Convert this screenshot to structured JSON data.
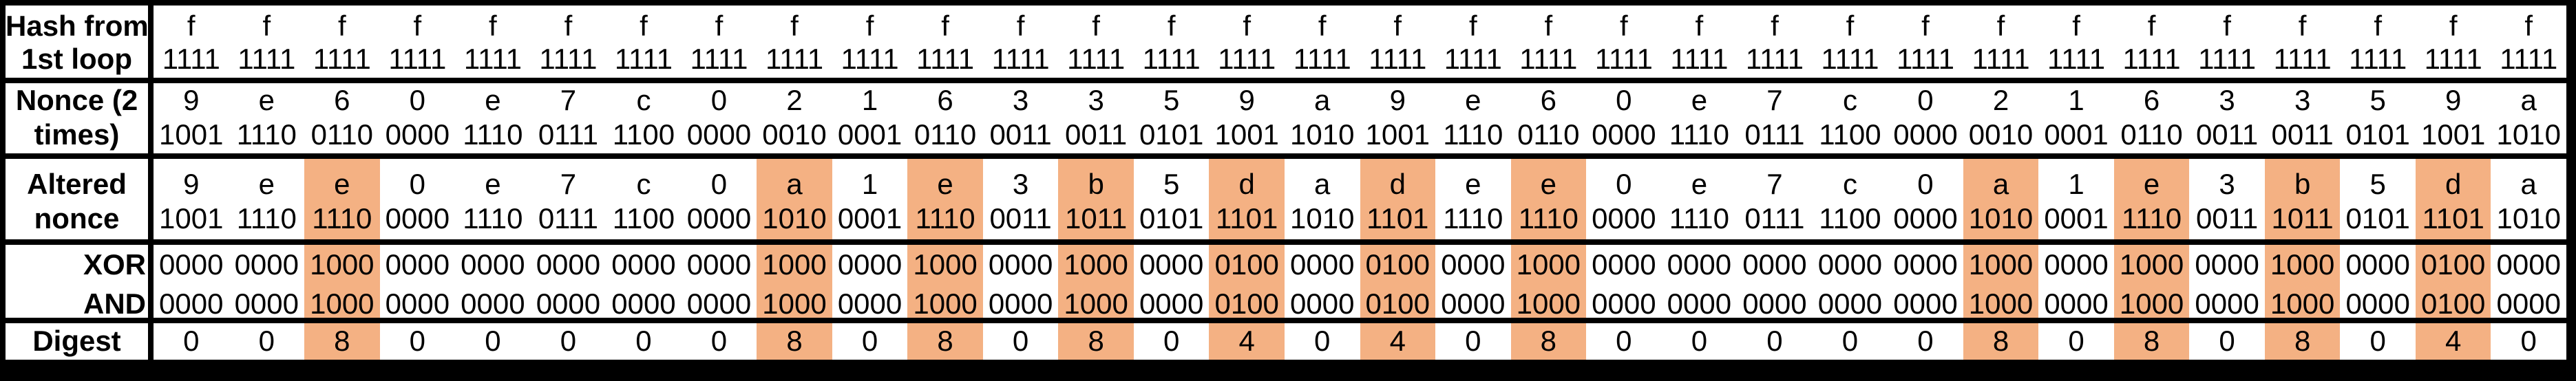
{
  "labels": {
    "hash_line1": "Hash from",
    "hash_line2": "1st loop",
    "nonce_line1": "Nonce (2",
    "nonce_line2": "times)",
    "altered_line1": "Altered",
    "altered_line2": "nonce",
    "xor": "XOR",
    "and": "AND",
    "digest": "Digest"
  },
  "colors": {
    "highlight": "#F4B183",
    "border": "#000000",
    "cell_background": "#FFFFFF",
    "text": "#000000"
  },
  "grid": {
    "columns": 32,
    "highlighted_columns": [
      2,
      8,
      10,
      12,
      14,
      16,
      18,
      24,
      26,
      28,
      30
    ],
    "hash_hex": [
      "f",
      "f",
      "f",
      "f",
      "f",
      "f",
      "f",
      "f",
      "f",
      "f",
      "f",
      "f",
      "f",
      "f",
      "f",
      "f",
      "f",
      "f",
      "f",
      "f",
      "f",
      "f",
      "f",
      "f",
      "f",
      "f",
      "f",
      "f",
      "f",
      "f",
      "f",
      "f"
    ],
    "hash_bin": [
      "1111",
      "1111",
      "1111",
      "1111",
      "1111",
      "1111",
      "1111",
      "1111",
      "1111",
      "1111",
      "1111",
      "1111",
      "1111",
      "1111",
      "1111",
      "1111",
      "1111",
      "1111",
      "1111",
      "1111",
      "1111",
      "1111",
      "1111",
      "1111",
      "1111",
      "1111",
      "1111",
      "1111",
      "1111",
      "1111",
      "1111",
      "1111"
    ],
    "nonce_hex": [
      "9",
      "e",
      "6",
      "0",
      "e",
      "7",
      "c",
      "0",
      "2",
      "1",
      "6",
      "3",
      "3",
      "5",
      "9",
      "a",
      "9",
      "e",
      "6",
      "0",
      "e",
      "7",
      "c",
      "0",
      "2",
      "1",
      "6",
      "3",
      "3",
      "5",
      "9",
      "a"
    ],
    "nonce_bin": [
      "1001",
      "1110",
      "0110",
      "0000",
      "1110",
      "0111",
      "1100",
      "0000",
      "0010",
      "0001",
      "0110",
      "0011",
      "0011",
      "0101",
      "1001",
      "1010",
      "1001",
      "1110",
      "0110",
      "0000",
      "1110",
      "0111",
      "1100",
      "0000",
      "0010",
      "0001",
      "0110",
      "0011",
      "0011",
      "0101",
      "1001",
      "1010"
    ],
    "altered_hex": [
      "9",
      "e",
      "e",
      "0",
      "e",
      "7",
      "c",
      "0",
      "a",
      "1",
      "e",
      "3",
      "b",
      "5",
      "d",
      "a",
      "d",
      "e",
      "e",
      "0",
      "e",
      "7",
      "c",
      "0",
      "a",
      "1",
      "e",
      "3",
      "b",
      "5",
      "d",
      "a"
    ],
    "altered_bin": [
      "1001",
      "1110",
      "1110",
      "0000",
      "1110",
      "0111",
      "1100",
      "0000",
      "1010",
      "0001",
      "1110",
      "0011",
      "1011",
      "0101",
      "1101",
      "1010",
      "1101",
      "1110",
      "1110",
      "0000",
      "1110",
      "0111",
      "1100",
      "0000",
      "1010",
      "0001",
      "1110",
      "0011",
      "1011",
      "0101",
      "1101",
      "1010"
    ],
    "xor": [
      "0000",
      "0000",
      "1000",
      "0000",
      "0000",
      "0000",
      "0000",
      "0000",
      "1000",
      "0000",
      "1000",
      "0000",
      "1000",
      "0000",
      "0100",
      "0000",
      "0100",
      "0000",
      "1000",
      "0000",
      "0000",
      "0000",
      "0000",
      "0000",
      "1000",
      "0000",
      "1000",
      "0000",
      "1000",
      "0000",
      "0100",
      "0000"
    ],
    "and": [
      "0000",
      "0000",
      "1000",
      "0000",
      "0000",
      "0000",
      "0000",
      "0000",
      "1000",
      "0000",
      "1000",
      "0000",
      "1000",
      "0000",
      "0100",
      "0000",
      "0100",
      "0000",
      "1000",
      "0000",
      "0000",
      "0000",
      "0000",
      "0000",
      "1000",
      "0000",
      "1000",
      "0000",
      "1000",
      "0000",
      "0100",
      "0000"
    ],
    "digest": [
      "0",
      "0",
      "8",
      "0",
      "0",
      "0",
      "0",
      "0",
      "8",
      "0",
      "8",
      "0",
      "8",
      "0",
      "4",
      "0",
      "4",
      "0",
      "8",
      "0",
      "0",
      "0",
      "0",
      "0",
      "8",
      "0",
      "8",
      "0",
      "8",
      "0",
      "4",
      "0"
    ]
  }
}
